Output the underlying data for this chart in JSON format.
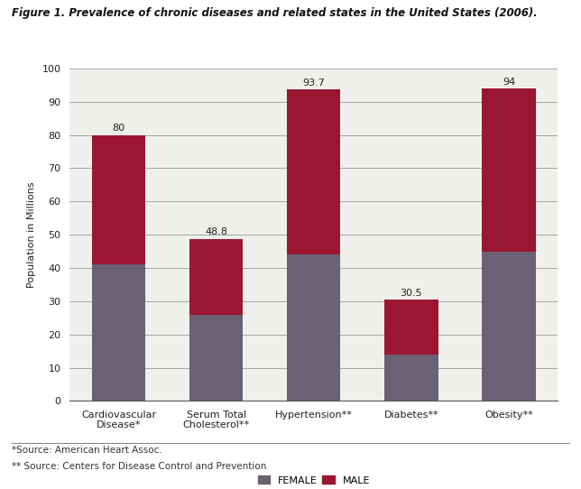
{
  "title": "Figure 1. Prevalence of chronic diseases and related states in the United States (2006).",
  "categories": [
    "Cardiovascular\nDisease*",
    "Serum Total\nCholesterol**",
    "Hypertension**",
    "Diabetes**",
    "Obesity**"
  ],
  "female_values": [
    41,
    26,
    44,
    14,
    45
  ],
  "male_values": [
    39,
    22.8,
    49.7,
    16.5,
    49
  ],
  "totals": [
    80,
    48.8,
    93.7,
    30.5,
    94
  ],
  "female_color": "#6b6174",
  "male_color": "#9b1630",
  "bg_color": "#efefec",
  "fig_color": "#ffffff",
  "ylabel": "Population in Millions",
  "ylim": [
    0,
    100
  ],
  "yticks": [
    0,
    10,
    20,
    30,
    40,
    50,
    60,
    70,
    80,
    90,
    100
  ],
  "footnote1": "*Source: American Heart Assoc.",
  "footnote2": "** Source: Centers for Disease Control and Prevention",
  "title_fontsize": 8.5,
  "label_fontsize": 8,
  "tick_fontsize": 8,
  "annot_fontsize": 8,
  "legend_fontsize": 8,
  "footnote_fontsize": 7.5,
  "bar_width": 0.55
}
